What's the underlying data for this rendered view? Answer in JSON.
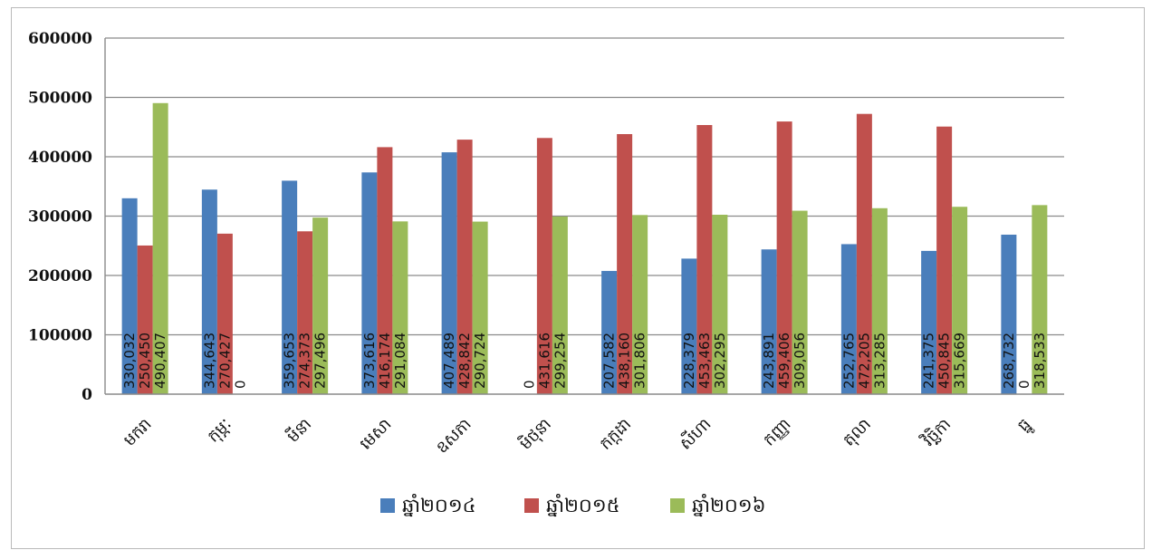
{
  "chart_data": {
    "type": "bar",
    "categories": [
      "មករា",
      "កុម្ភៈ",
      "មីនា",
      "មេសា",
      "ឧសភា",
      "មិថុនា",
      "កក្កដា",
      "សីហា",
      "កញ្ញា",
      "តុលា",
      "វិច្ឆិកា",
      "ធ្នូ"
    ],
    "series": [
      {
        "name": "ឆ្នាំ២០១៤",
        "color": "#4a7ebb",
        "values": [
          330032,
          344643,
          359653,
          373616,
          407489,
          0,
          207582,
          228379,
          243891,
          252765,
          241375,
          268732
        ],
        "labels": [
          "330,032",
          "344,643",
          "359,653",
          "373,616",
          "407,489",
          "0",
          "207,582",
          "228,379",
          "243,891",
          "252,765",
          "241,375",
          "268,732"
        ]
      },
      {
        "name": "ឆ្នាំ២០១៥",
        "color": "#c0504d",
        "values": [
          250450,
          270427,
          274373,
          416174,
          428842,
          431616,
          438160,
          453463,
          459406,
          472205,
          450845,
          0
        ],
        "labels": [
          "250,450",
          "270,427",
          "274,373",
          "416,174",
          "428,842",
          "431,616",
          "438,160",
          "453,463",
          "459,406",
          "472,205",
          "450,845",
          "0"
        ]
      },
      {
        "name": "ឆ្នាំ២០១៦",
        "color": "#9bbb59",
        "values": [
          490407,
          0,
          297496,
          291084,
          290724,
          299254,
          301806,
          302295,
          309056,
          313285,
          315669,
          318533
        ],
        "labels": [
          "490,407",
          "0",
          "297,496",
          "291,084",
          "290,724",
          "299,254",
          "301,806",
          "302,295",
          "309,056",
          "313,285",
          "315,669",
          "318,533"
        ]
      }
    ],
    "yticks": [
      "0",
      "100000",
      "200000",
      "300000",
      "400000",
      "500000",
      "600000"
    ],
    "ylim": [
      0,
      600000
    ],
    "grid": true,
    "legend_position": "bottom"
  }
}
